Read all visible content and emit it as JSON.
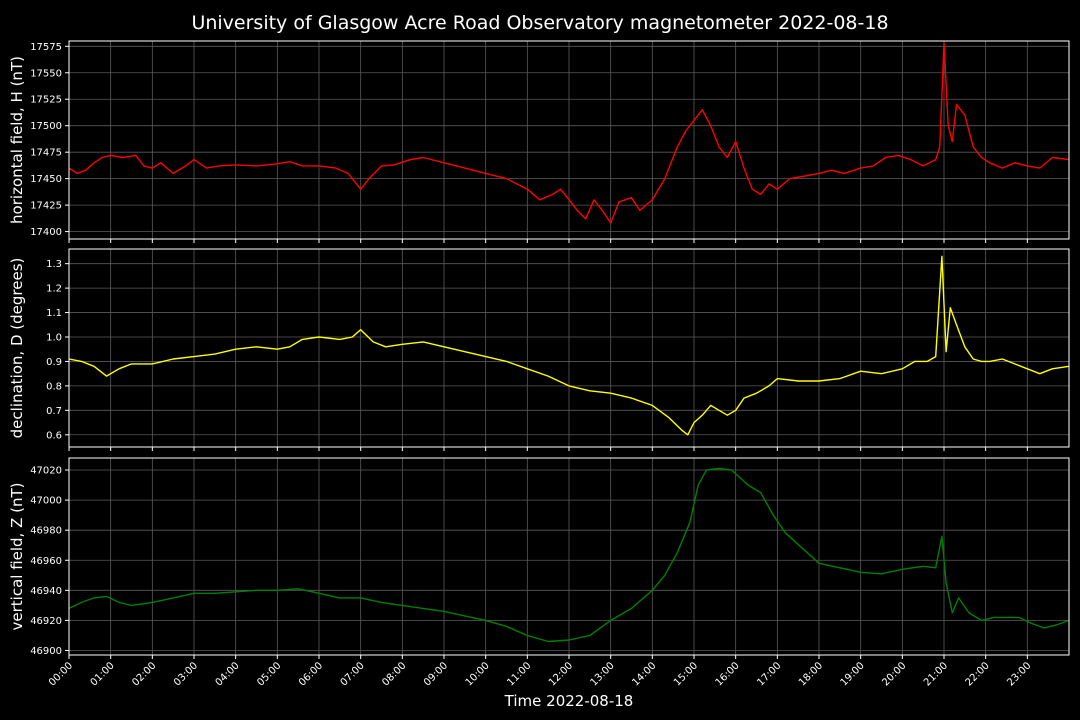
{
  "chart_data": {
    "type": "line",
    "title": "University of Glasgow Acre Road Observatory magnetometer 2022-08-18",
    "xlabel": "Time 2022-08-18",
    "x_ticks": [
      "00:00",
      "01:00",
      "02:00",
      "03:00",
      "04:00",
      "05:00",
      "06:00",
      "07:00",
      "08:00",
      "09:00",
      "10:00",
      "11:00",
      "12:00",
      "13:00",
      "14:00",
      "15:00",
      "16:00",
      "17:00",
      "18:00",
      "19:00",
      "20:00",
      "21:00",
      "22:00",
      "23:00"
    ],
    "xlim": [
      0,
      24
    ],
    "grid": true,
    "panels": [
      {
        "ylabel": "horizontal field, H (nT)",
        "color": "#ff0000",
        "ylim": [
          17393,
          17580
        ],
        "yticks": [
          17400,
          17425,
          17450,
          17475,
          17500,
          17525,
          17550,
          17575
        ],
        "x": [
          0,
          0.2,
          0.4,
          0.6,
          0.8,
          1.0,
          1.3,
          1.6,
          1.8,
          2.0,
          2.2,
          2.5,
          2.8,
          3.0,
          3.3,
          3.6,
          4.0,
          4.5,
          5.0,
          5.3,
          5.6,
          6.0,
          6.4,
          6.7,
          6.9,
          7.0,
          7.2,
          7.5,
          7.8,
          8.2,
          8.5,
          9.0,
          9.5,
          10.0,
          10.5,
          11.0,
          11.3,
          11.6,
          11.8,
          12.0,
          12.2,
          12.4,
          12.6,
          12.8,
          13.0,
          13.2,
          13.5,
          13.7,
          14.0,
          14.3,
          14.6,
          14.8,
          15.0,
          15.2,
          15.4,
          15.6,
          15.8,
          16.0,
          16.2,
          16.4,
          16.6,
          16.8,
          17.0,
          17.3,
          17.6,
          18.0,
          18.3,
          18.6,
          19.0,
          19.3,
          19.6,
          19.9,
          20.2,
          20.5,
          20.8,
          20.9,
          21.0,
          21.1,
          21.2,
          21.3,
          21.5,
          21.7,
          21.9,
          22.1,
          22.4,
          22.7,
          23.0,
          23.3,
          23.6,
          24.0
        ],
        "values": [
          17460,
          17455,
          17458,
          17465,
          17470,
          17472,
          17470,
          17472,
          17462,
          17460,
          17465,
          17455,
          17462,
          17468,
          17460,
          17462,
          17463,
          17462,
          17464,
          17466,
          17462,
          17462,
          17460,
          17455,
          17445,
          17440,
          17450,
          17462,
          17463,
          17468,
          17470,
          17465,
          17460,
          17455,
          17450,
          17440,
          17430,
          17435,
          17440,
          17430,
          17420,
          17412,
          17430,
          17420,
          17408,
          17428,
          17432,
          17420,
          17430,
          17450,
          17480,
          17495,
          17505,
          17515,
          17500,
          17480,
          17470,
          17485,
          17460,
          17440,
          17435,
          17445,
          17440,
          17450,
          17452,
          17455,
          17458,
          17455,
          17460,
          17462,
          17470,
          17472,
          17468,
          17462,
          17468,
          17480,
          17578,
          17500,
          17485,
          17520,
          17510,
          17480,
          17470,
          17465,
          17460,
          17465,
          17462,
          17460,
          17470,
          17468
        ]
      },
      {
        "ylabel": "declination, D (degrees)",
        "color": "#ffff00",
        "ylim": [
          0.55,
          1.36
        ],
        "yticks": [
          0.6,
          0.7,
          0.8,
          0.9,
          1.0,
          1.1,
          1.2,
          1.3
        ],
        "x": [
          0,
          0.3,
          0.6,
          0.9,
          1.2,
          1.5,
          2.0,
          2.5,
          3.0,
          3.5,
          4.0,
          4.5,
          5.0,
          5.3,
          5.6,
          6.0,
          6.5,
          6.8,
          7.0,
          7.3,
          7.6,
          8.0,
          8.5,
          9.0,
          9.5,
          10.0,
          10.5,
          11.0,
          11.5,
          12.0,
          12.5,
          13.0,
          13.5,
          14.0,
          14.4,
          14.7,
          14.85,
          15.0,
          15.2,
          15.4,
          15.6,
          15.8,
          16.0,
          16.2,
          16.5,
          16.8,
          17.0,
          17.5,
          18.0,
          18.5,
          19.0,
          19.5,
          20.0,
          20.3,
          20.6,
          20.8,
          20.95,
          21.05,
          21.15,
          21.3,
          21.5,
          21.7,
          21.9,
          22.1,
          22.4,
          22.7,
          23.0,
          23.3,
          23.6,
          24.0
        ],
        "values": [
          0.91,
          0.9,
          0.88,
          0.84,
          0.87,
          0.89,
          0.89,
          0.91,
          0.92,
          0.93,
          0.95,
          0.96,
          0.95,
          0.96,
          0.99,
          1.0,
          0.99,
          1.0,
          1.03,
          0.98,
          0.96,
          0.97,
          0.98,
          0.96,
          0.94,
          0.92,
          0.9,
          0.87,
          0.84,
          0.8,
          0.78,
          0.77,
          0.75,
          0.72,
          0.67,
          0.62,
          0.6,
          0.65,
          0.68,
          0.72,
          0.7,
          0.68,
          0.7,
          0.75,
          0.77,
          0.8,
          0.83,
          0.82,
          0.82,
          0.83,
          0.86,
          0.85,
          0.87,
          0.9,
          0.9,
          0.92,
          1.33,
          0.94,
          1.12,
          1.05,
          0.96,
          0.91,
          0.9,
          0.9,
          0.91,
          0.89,
          0.87,
          0.85,
          0.87,
          0.88
        ]
      },
      {
        "ylabel": "vertical field, Z (nT)",
        "color": "#008000",
        "ylim": [
          46897,
          47028
        ],
        "yticks": [
          46900,
          46920,
          46940,
          46960,
          46980,
          47000,
          47020
        ],
        "x": [
          0,
          0.3,
          0.6,
          0.9,
          1.2,
          1.5,
          2.0,
          2.5,
          3.0,
          3.5,
          4.0,
          4.5,
          5.0,
          5.5,
          6.0,
          6.5,
          7.0,
          7.5,
          8.0,
          8.5,
          9.0,
          9.5,
          10.0,
          10.5,
          11.0,
          11.5,
          12.0,
          12.5,
          13.0,
          13.5,
          14.0,
          14.3,
          14.6,
          14.9,
          15.1,
          15.3,
          15.6,
          15.9,
          16.1,
          16.3,
          16.6,
          16.9,
          17.2,
          17.6,
          18.0,
          18.5,
          19.0,
          19.5,
          20.0,
          20.5,
          20.8,
          20.95,
          21.05,
          21.2,
          21.35,
          21.6,
          21.9,
          22.2,
          22.5,
          22.8,
          23.1,
          23.4,
          23.7,
          24.0
        ],
        "values": [
          46928,
          46932,
          46935,
          46936,
          46932,
          46930,
          46932,
          46935,
          46938,
          46938,
          46939,
          46940,
          46940,
          46941,
          46938,
          46935,
          46935,
          46932,
          46930,
          46928,
          46926,
          46923,
          46920,
          46916,
          46910,
          46906,
          46907,
          46910,
          46920,
          46928,
          46940,
          46950,
          46965,
          46985,
          47010,
          47020,
          47021,
          47020,
          47015,
          47010,
          47005,
          46990,
          46978,
          46968,
          46958,
          46955,
          46952,
          46951,
          46954,
          46956,
          46955,
          46976,
          46945,
          46925,
          46935,
          46925,
          46920,
          46922,
          46922,
          46922,
          46918,
          46915,
          46917,
          46920
        ]
      }
    ]
  }
}
